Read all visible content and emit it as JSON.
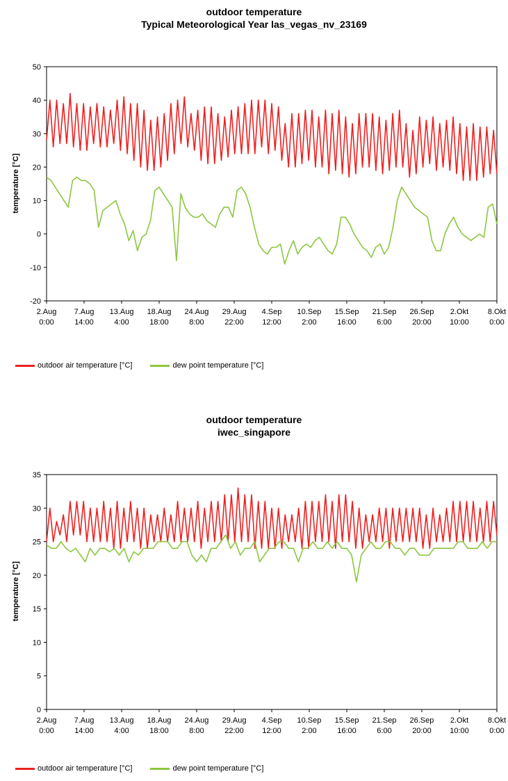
{
  "colors": {
    "air": "#ee1f1f",
    "dew": "#8cc63f"
  },
  "chart_data": [
    {
      "type": "line",
      "title": "outdoor temperature",
      "subtitle": "Typical Meteorological Year las_vegas_nv_23169",
      "ylabel": "temperature  [°C]",
      "xlabel": "",
      "ylim": [
        -20,
        50
      ],
      "yticks": [
        -20,
        -10,
        0,
        10,
        20,
        30,
        40,
        50
      ],
      "xlim": [
        0,
        67
      ],
      "xtick_positions": [
        0,
        5.58,
        11.17,
        16.75,
        22.33,
        27.92,
        33.5,
        39.08,
        44.67,
        50.25,
        55.83,
        61.42,
        67
      ],
      "xtick_labels": [
        [
          "2.Aug",
          "0:00"
        ],
        [
          "7.Aug",
          "14:00"
        ],
        [
          "13.Aug",
          "4:00"
        ],
        [
          "18.Aug",
          "18:00"
        ],
        [
          "24.Aug",
          "8:00"
        ],
        [
          "29.Aug",
          "22:00"
        ],
        [
          "4.Sep",
          "12:00"
        ],
        [
          "10.Sep",
          "2:00"
        ],
        [
          "15.Sep",
          "16:00"
        ],
        [
          "21.Sep",
          "6:00"
        ],
        [
          "26.Sep",
          "20:00"
        ],
        [
          "2.Okt",
          "10:00"
        ],
        [
          "8.Okt",
          "0:00"
        ]
      ],
      "grid": false,
      "legend_position": "bottom-left",
      "series": [
        {
          "name": "outdoor air temperature  [°C]",
          "color": "#ee1f1f",
          "max": [
            40,
            40,
            39,
            42,
            39,
            39,
            38,
            39,
            38,
            37,
            40,
            41,
            39,
            39,
            37,
            34,
            35,
            36,
            39,
            40,
            41,
            36,
            37,
            38,
            38,
            36,
            35,
            37,
            38,
            39,
            40,
            40,
            40,
            39,
            38,
            33,
            36,
            36,
            37,
            37,
            35,
            37,
            36,
            37,
            35,
            33,
            36,
            36,
            36,
            35,
            34,
            36,
            37,
            33,
            31,
            35,
            34,
            35,
            33,
            34,
            35,
            33,
            32,
            33,
            32,
            32,
            31,
            28
          ],
          "min": [
            28,
            26,
            27,
            27,
            26,
            25,
            25,
            27,
            26,
            26,
            27,
            25,
            24,
            22,
            20,
            19,
            19,
            20,
            22,
            24,
            27,
            26,
            25,
            22,
            21,
            21,
            22,
            23,
            24,
            24,
            24,
            24,
            26,
            24,
            25,
            22,
            20,
            20,
            21,
            22,
            20,
            20,
            18,
            19,
            18,
            17,
            18,
            20,
            20,
            19,
            18,
            19,
            20,
            20,
            17,
            18,
            20,
            21,
            19,
            20,
            19,
            18,
            16,
            16,
            16,
            17,
            18,
            18
          ]
        },
        {
          "name": "dew point temperature  [°C]",
          "color": "#8cc63f",
          "values": [
            17,
            16,
            14,
            12,
            10,
            8,
            16,
            17,
            16,
            16,
            15,
            13,
            2,
            7,
            8,
            9,
            10,
            6,
            3,
            -2,
            1,
            -5,
            -1,
            0,
            4,
            13,
            14,
            12,
            10,
            8,
            -8,
            12,
            8,
            6,
            5,
            5,
            6,
            4,
            3,
            2,
            6,
            8,
            8,
            5,
            13,
            14,
            12,
            8,
            2,
            -3,
            -5,
            -6,
            -4,
            -4,
            -3,
            -9,
            -5,
            -2,
            -6,
            -4,
            -3,
            -4,
            -2,
            -1,
            -3,
            -5,
            -6,
            -3,
            5,
            5,
            3,
            0,
            -2,
            -4,
            -5,
            -7,
            -4,
            -3,
            -6,
            -4,
            2,
            10,
            14,
            12,
            10,
            8,
            7,
            6,
            5,
            -2,
            -5,
            -5,
            0,
            3,
            5,
            2,
            0,
            -1,
            -2,
            -1,
            0,
            -1,
            8,
            9,
            3
          ]
        }
      ]
    },
    {
      "type": "line",
      "title": "outdoor temperature",
      "subtitle": "iwec_singapore",
      "ylabel": "temperature  [°C]",
      "xlabel": "",
      "ylim": [
        0,
        35
      ],
      "yticks": [
        0,
        5,
        10,
        15,
        20,
        25,
        30,
        35
      ],
      "xlim": [
        0,
        67
      ],
      "xtick_positions": [
        0,
        5.58,
        11.17,
        16.75,
        22.33,
        27.92,
        33.5,
        39.08,
        44.67,
        50.25,
        55.83,
        61.42,
        67
      ],
      "xtick_labels": [
        [
          "2.Aug",
          "0:00"
        ],
        [
          "7.Aug",
          "14:00"
        ],
        [
          "13.Aug",
          "4:00"
        ],
        [
          "18.Aug",
          "18:00"
        ],
        [
          "24.Aug",
          "8:00"
        ],
        [
          "29.Aug",
          "22:00"
        ],
        [
          "4.Sep",
          "12:00"
        ],
        [
          "10.Sep",
          "2:00"
        ],
        [
          "15.Sep",
          "16:00"
        ],
        [
          "21.Sep",
          "6:00"
        ],
        [
          "26.Sep",
          "20:00"
        ],
        [
          "2.Okt",
          "10:00"
        ],
        [
          "8.Okt",
          "0:00"
        ]
      ],
      "grid": false,
      "legend_position": "bottom-left",
      "series": [
        {
          "name": "outdoor air temperature  [°C]",
          "color": "#ee1f1f",
          "max": [
            30,
            28,
            29,
            31,
            31,
            31,
            30,
            30,
            31,
            30,
            31,
            30,
            31,
            30,
            30,
            29,
            29,
            30,
            29,
            31,
            30,
            30,
            31,
            30,
            31,
            31,
            32,
            32,
            33,
            32,
            32,
            31,
            31,
            30,
            30,
            29,
            29,
            30,
            31,
            31,
            31,
            32,
            31,
            32,
            32,
            31,
            30,
            29,
            29,
            30,
            30,
            30,
            30,
            30,
            30,
            30,
            29,
            30,
            29,
            30,
            31,
            31,
            31,
            31,
            30,
            31,
            31,
            31
          ],
          "min": [
            25,
            25,
            26,
            25,
            26,
            26,
            25,
            25,
            25,
            25,
            24,
            24,
            25,
            25,
            24,
            24,
            25,
            25,
            25,
            25,
            25,
            25,
            25,
            24,
            25,
            25,
            25,
            25,
            25,
            25,
            25,
            24,
            24,
            24,
            24,
            24,
            25,
            25,
            24,
            24,
            25,
            25,
            25,
            24,
            25,
            25,
            24,
            24,
            25,
            25,
            25,
            24,
            25,
            25,
            25,
            25,
            24,
            24,
            25,
            25,
            25,
            25,
            25,
            25,
            25,
            25,
            25,
            26
          ]
        },
        {
          "name": "dew point temperature  [°C]",
          "color": "#8cc63f",
          "values": [
            24.5,
            24,
            24,
            25,
            24,
            23.5,
            24,
            23,
            22,
            24,
            23,
            24,
            24,
            23.5,
            24,
            23,
            24,
            22,
            23.5,
            23,
            24,
            24,
            24,
            25,
            25,
            25,
            24,
            24,
            25,
            25,
            23,
            22,
            23,
            22,
            24,
            24,
            25,
            26,
            24,
            25,
            23,
            24,
            24,
            25,
            22,
            23,
            24,
            24,
            25,
            25,
            24,
            24,
            22,
            24,
            24,
            25,
            24,
            24,
            25,
            24,
            25,
            24,
            24,
            23,
            19,
            23,
            24,
            25,
            24,
            24,
            25,
            25,
            24,
            24,
            23,
            24,
            24,
            23,
            23,
            23,
            24,
            24,
            24,
            24,
            24,
            25,
            25,
            24,
            24,
            24,
            25,
            24,
            25,
            25
          ]
        }
      ]
    }
  ]
}
